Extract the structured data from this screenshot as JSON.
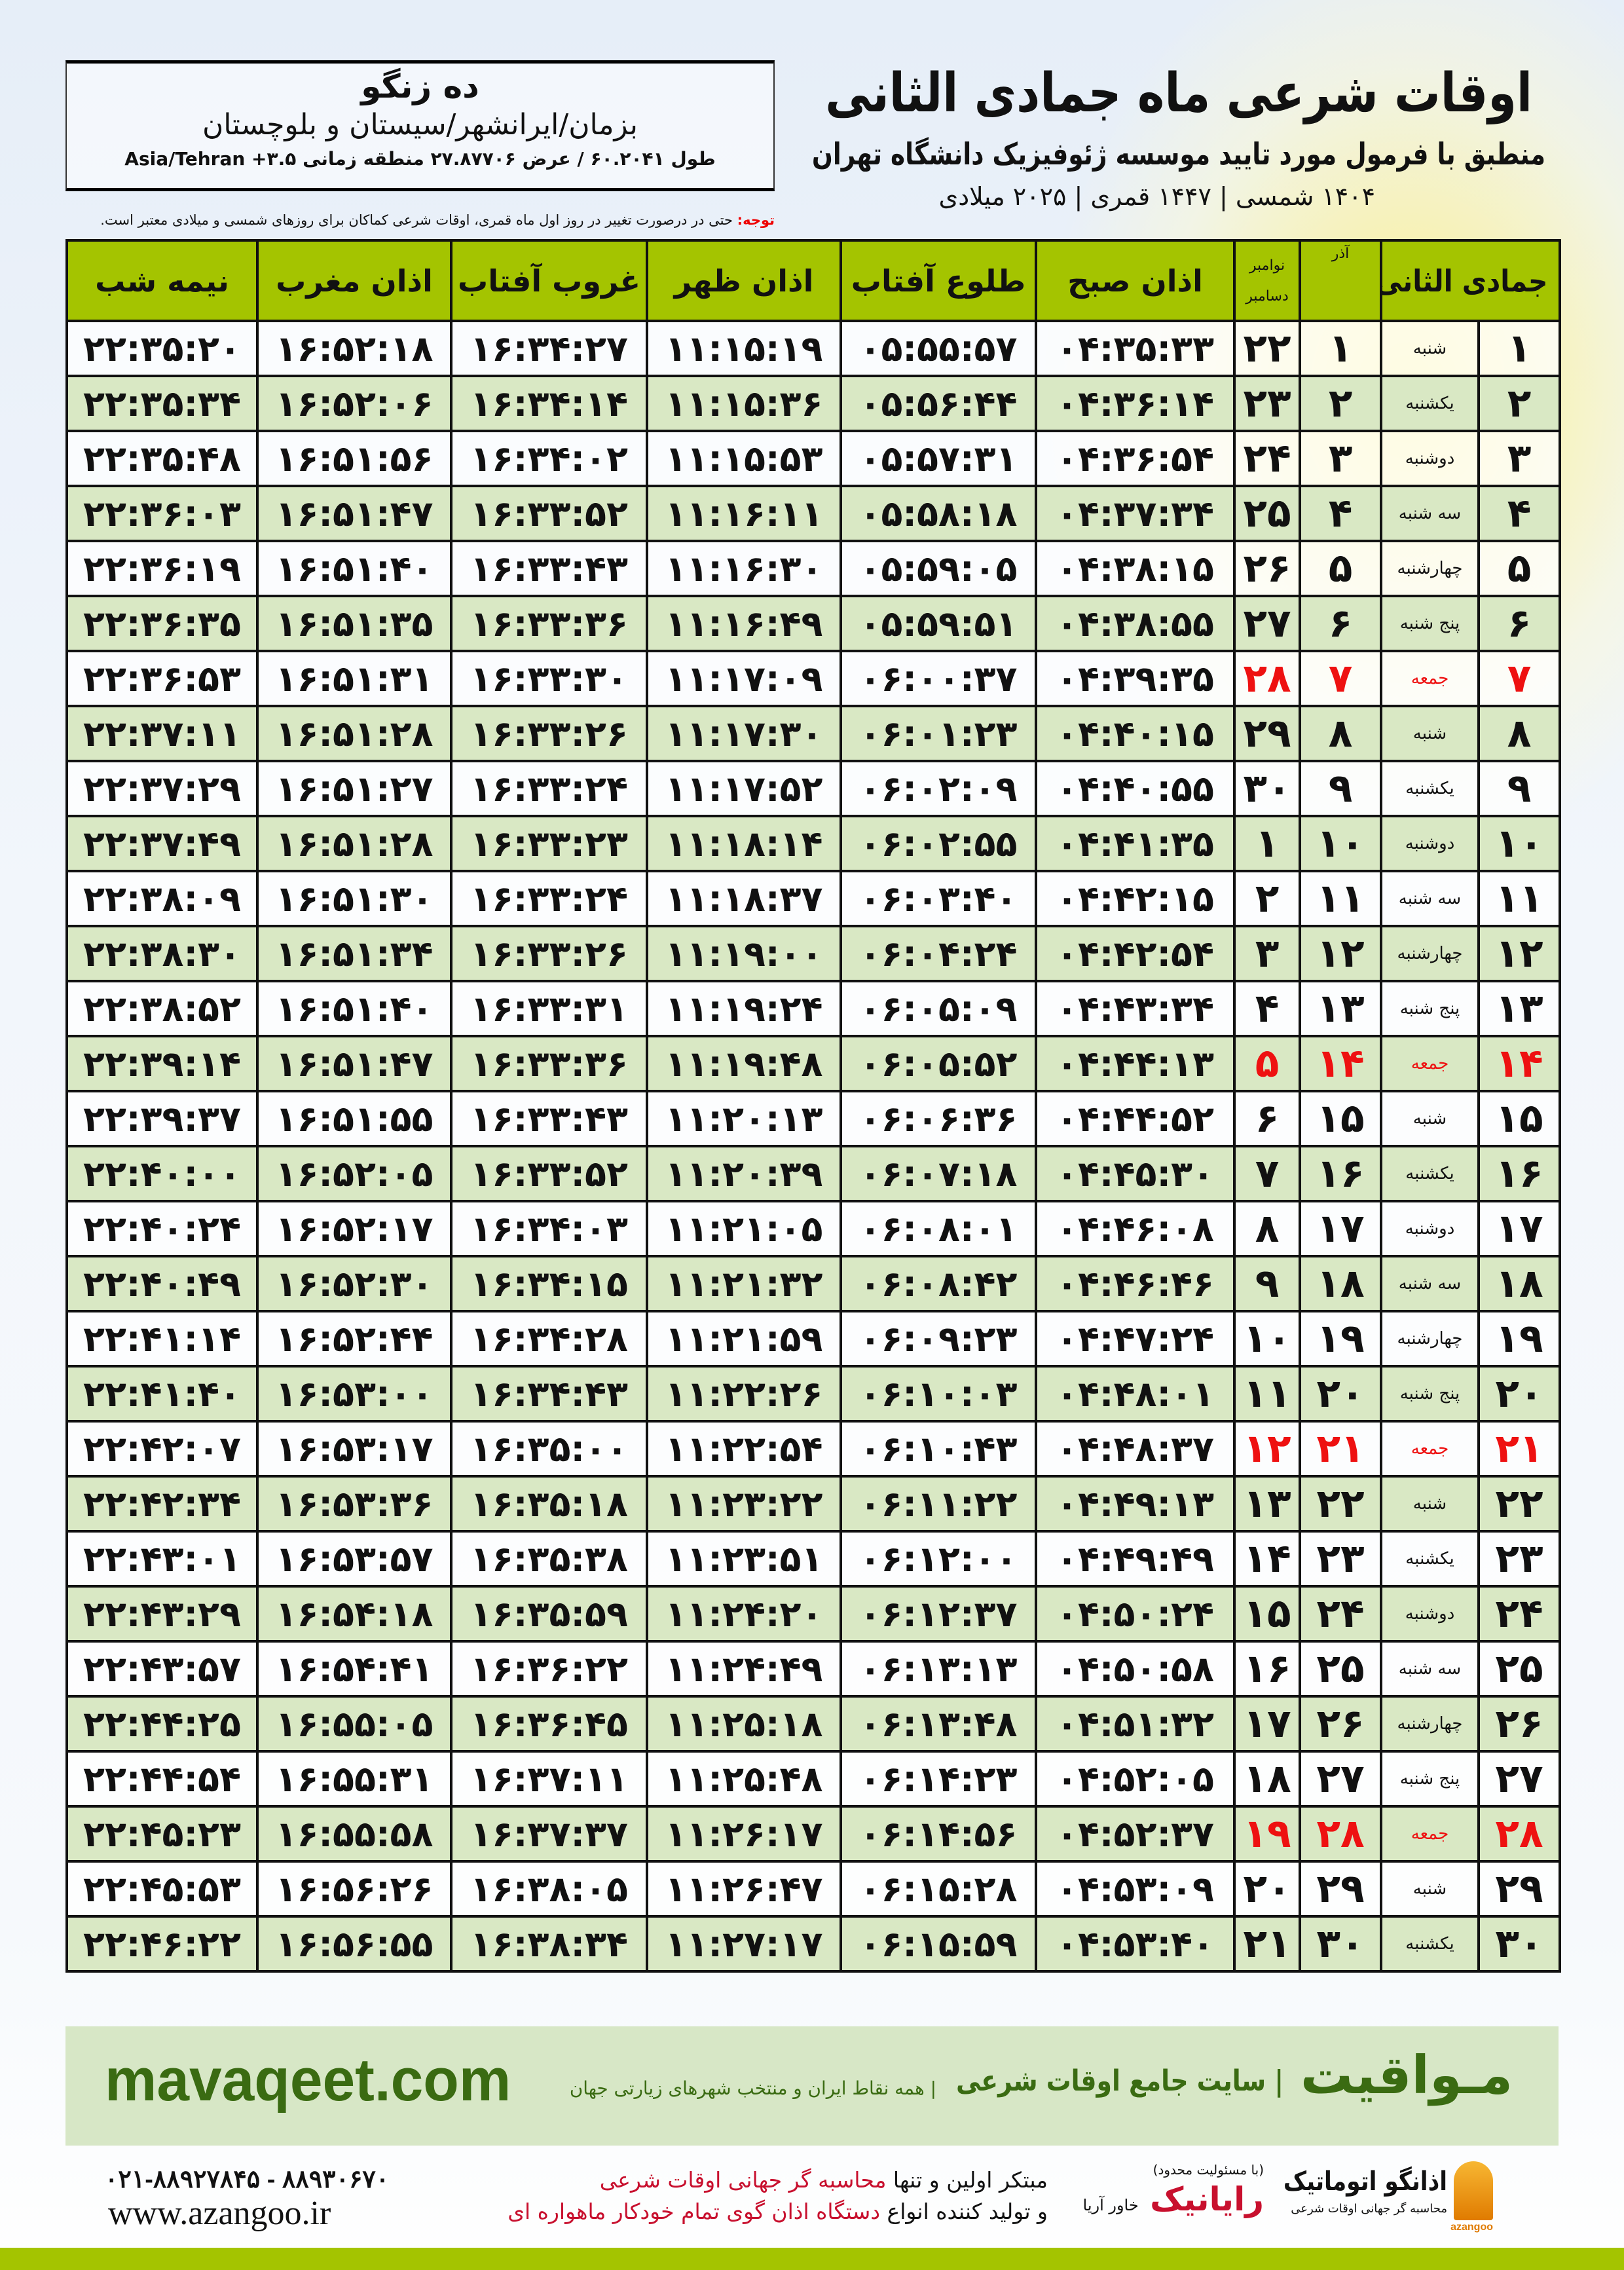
{
  "header": {
    "title": "اوقات شرعی ماه جمادی الثانی",
    "subtitle": "منطبق با فرمول مورد تایید موسسه ژئوفیزیک دانشگاه تهران",
    "years": "۱۴۰۴ شمسی | ۱۴۴۷ قمری | ۲۰۲۵ میلادی"
  },
  "location": {
    "city": "ده زنگو",
    "province": "بزمان/ایرانشهر/سیستان و بلوچستان",
    "coords": "طول ۶۰.۲۰۴۱ / عرض ۲۷.۸۷۷۰۶ منطقه زمانی ۳.۵+ Asia/Tehran"
  },
  "note": {
    "label": "توجه:",
    "text": " حتی در درصورت تغییر در روز اول ماه قمری، اوقات شرعی کماکان برای روزهای شمسی و میلادی معتبر است."
  },
  "table": {
    "headers": {
      "hijri": "جمادی الثانی",
      "azar": "آذر",
      "greg_top": "نوامبر",
      "greg_bottom": "دسامبر",
      "sobh": "اذان صبح",
      "tolu": "طلوع آفتاب",
      "zohr": "اذان ظهر",
      "ghorub": "غروب آفتاب",
      "maghreb": "اذان مغرب",
      "nimeshab": "نیمه شب"
    },
    "highlight_color": "#ee1111",
    "header_color": "#a4c400",
    "alt_row_color": "#d9e8c4",
    "rows": [
      [
        "۱",
        "شنبه",
        "۱",
        "۲۲",
        "۰۴:۳۵:۳۳",
        "۰۵:۵۵:۵۷",
        "۱۱:۱۵:۱۹",
        "۱۶:۳۴:۲۷",
        "۱۶:۵۲:۱۸",
        "۲۲:۳۵:۲۰"
      ],
      [
        "۲",
        "یکشنبه",
        "۲",
        "۲۳",
        "۰۴:۳۶:۱۴",
        "۰۵:۵۶:۴۴",
        "۱۱:۱۵:۳۶",
        "۱۶:۳۴:۱۴",
        "۱۶:۵۲:۰۶",
        "۲۲:۳۵:۳۴"
      ],
      [
        "۳",
        "دوشنبه",
        "۳",
        "۲۴",
        "۰۴:۳۶:۵۴",
        "۰۵:۵۷:۳۱",
        "۱۱:۱۵:۵۳",
        "۱۶:۳۴:۰۲",
        "۱۶:۵۱:۵۶",
        "۲۲:۳۵:۴۸"
      ],
      [
        "۴",
        "سه شنبه",
        "۴",
        "۲۵",
        "۰۴:۳۷:۳۴",
        "۰۵:۵۸:۱۸",
        "۱۱:۱۶:۱۱",
        "۱۶:۳۳:۵۲",
        "۱۶:۵۱:۴۷",
        "۲۲:۳۶:۰۳"
      ],
      [
        "۵",
        "چهارشنبه",
        "۵",
        "۲۶",
        "۰۴:۳۸:۱۵",
        "۰۵:۵۹:۰۵",
        "۱۱:۱۶:۳۰",
        "۱۶:۳۳:۴۳",
        "۱۶:۵۱:۴۰",
        "۲۲:۳۶:۱۹"
      ],
      [
        "۶",
        "پنج شنبه",
        "۶",
        "۲۷",
        "۰۴:۳۸:۵۵",
        "۰۵:۵۹:۵۱",
        "۱۱:۱۶:۴۹",
        "۱۶:۳۳:۳۶",
        "۱۶:۵۱:۳۵",
        "۲۲:۳۶:۳۵"
      ],
      [
        "۷",
        "جمعه",
        "۷",
        "۲۸",
        "۰۴:۳۹:۳۵",
        "۰۶:۰۰:۳۷",
        "۱۱:۱۷:۰۹",
        "۱۶:۳۳:۳۰",
        "۱۶:۵۱:۳۱",
        "۲۲:۳۶:۵۳"
      ],
      [
        "۸",
        "شنبه",
        "۸",
        "۲۹",
        "۰۴:۴۰:۱۵",
        "۰۶:۰۱:۲۳",
        "۱۱:۱۷:۳۰",
        "۱۶:۳۳:۲۶",
        "۱۶:۵۱:۲۸",
        "۲۲:۳۷:۱۱"
      ],
      [
        "۹",
        "یکشنبه",
        "۹",
        "۳۰",
        "۰۴:۴۰:۵۵",
        "۰۶:۰۲:۰۹",
        "۱۱:۱۷:۵۲",
        "۱۶:۳۳:۲۴",
        "۱۶:۵۱:۲۷",
        "۲۲:۳۷:۲۹"
      ],
      [
        "۱۰",
        "دوشنبه",
        "۱۰",
        "۱",
        "۰۴:۴۱:۳۵",
        "۰۶:۰۲:۵۵",
        "۱۱:۱۸:۱۴",
        "۱۶:۳۳:۲۳",
        "۱۶:۵۱:۲۸",
        "۲۲:۳۷:۴۹"
      ],
      [
        "۱۱",
        "سه شنبه",
        "۱۱",
        "۲",
        "۰۴:۴۲:۱۵",
        "۰۶:۰۳:۴۰",
        "۱۱:۱۸:۳۷",
        "۱۶:۳۳:۲۴",
        "۱۶:۵۱:۳۰",
        "۲۲:۳۸:۰۹"
      ],
      [
        "۱۲",
        "چهارشنبه",
        "۱۲",
        "۳",
        "۰۴:۴۲:۵۴",
        "۰۶:۰۴:۲۴",
        "۱۱:۱۹:۰۰",
        "۱۶:۳۳:۲۶",
        "۱۶:۵۱:۳۴",
        "۲۲:۳۸:۳۰"
      ],
      [
        "۱۳",
        "پنج شنبه",
        "۱۳",
        "۴",
        "۰۴:۴۳:۳۴",
        "۰۶:۰۵:۰۹",
        "۱۱:۱۹:۲۴",
        "۱۶:۳۳:۳۱",
        "۱۶:۵۱:۴۰",
        "۲۲:۳۸:۵۲"
      ],
      [
        "۱۴",
        "جمعه",
        "۱۴",
        "۵",
        "۰۴:۴۴:۱۳",
        "۰۶:۰۵:۵۲",
        "۱۱:۱۹:۴۸",
        "۱۶:۳۳:۳۶",
        "۱۶:۵۱:۴۷",
        "۲۲:۳۹:۱۴"
      ],
      [
        "۱۵",
        "شنبه",
        "۱۵",
        "۶",
        "۰۴:۴۴:۵۲",
        "۰۶:۰۶:۳۶",
        "۱۱:۲۰:۱۳",
        "۱۶:۳۳:۴۳",
        "۱۶:۵۱:۵۵",
        "۲۲:۳۹:۳۷"
      ],
      [
        "۱۶",
        "یکشنبه",
        "۱۶",
        "۷",
        "۰۴:۴۵:۳۰",
        "۰۶:۰۷:۱۸",
        "۱۱:۲۰:۳۹",
        "۱۶:۳۳:۵۲",
        "۱۶:۵۲:۰۵",
        "۲۲:۴۰:۰۰"
      ],
      [
        "۱۷",
        "دوشنبه",
        "۱۷",
        "۸",
        "۰۴:۴۶:۰۸",
        "۰۶:۰۸:۰۱",
        "۱۱:۲۱:۰۵",
        "۱۶:۳۴:۰۳",
        "۱۶:۵۲:۱۷",
        "۲۲:۴۰:۲۴"
      ],
      [
        "۱۸",
        "سه شنبه",
        "۱۸",
        "۹",
        "۰۴:۴۶:۴۶",
        "۰۶:۰۸:۴۲",
        "۱۱:۲۱:۳۲",
        "۱۶:۳۴:۱۵",
        "۱۶:۵۲:۳۰",
        "۲۲:۴۰:۴۹"
      ],
      [
        "۱۹",
        "چهارشنبه",
        "۱۹",
        "۱۰",
        "۰۴:۴۷:۲۴",
        "۰۶:۰۹:۲۳",
        "۱۱:۲۱:۵۹",
        "۱۶:۳۴:۲۸",
        "۱۶:۵۲:۴۴",
        "۲۲:۴۱:۱۴"
      ],
      [
        "۲۰",
        "پنج شنبه",
        "۲۰",
        "۱۱",
        "۰۴:۴۸:۰۱",
        "۰۶:۱۰:۰۳",
        "۱۱:۲۲:۲۶",
        "۱۶:۳۴:۴۳",
        "۱۶:۵۳:۰۰",
        "۲۲:۴۱:۴۰"
      ],
      [
        "۲۱",
        "جمعه",
        "۲۱",
        "۱۲",
        "۰۴:۴۸:۳۷",
        "۰۶:۱۰:۴۳",
        "۱۱:۲۲:۵۴",
        "۱۶:۳۵:۰۰",
        "۱۶:۵۳:۱۷",
        "۲۲:۴۲:۰۷"
      ],
      [
        "۲۲",
        "شنبه",
        "۲۲",
        "۱۳",
        "۰۴:۴۹:۱۳",
        "۰۶:۱۱:۲۲",
        "۱۱:۲۳:۲۲",
        "۱۶:۳۵:۱۸",
        "۱۶:۵۳:۳۶",
        "۲۲:۴۲:۳۴"
      ],
      [
        "۲۳",
        "یکشنبه",
        "۲۳",
        "۱۴",
        "۰۴:۴۹:۴۹",
        "۰۶:۱۲:۰۰",
        "۱۱:۲۳:۵۱",
        "۱۶:۳۵:۳۸",
        "۱۶:۵۳:۵۷",
        "۲۲:۴۳:۰۱"
      ],
      [
        "۲۴",
        "دوشنبه",
        "۲۴",
        "۱۵",
        "۰۴:۵۰:۲۴",
        "۰۶:۱۲:۳۷",
        "۱۱:۲۴:۲۰",
        "۱۶:۳۵:۵۹",
        "۱۶:۵۴:۱۸",
        "۲۲:۴۳:۲۹"
      ],
      [
        "۲۵",
        "سه شنبه",
        "۲۵",
        "۱۶",
        "۰۴:۵۰:۵۸",
        "۰۶:۱۳:۱۳",
        "۱۱:۲۴:۴۹",
        "۱۶:۳۶:۲۲",
        "۱۶:۵۴:۴۱",
        "۲۲:۴۳:۵۷"
      ],
      [
        "۲۶",
        "چهارشنبه",
        "۲۶",
        "۱۷",
        "۰۴:۵۱:۳۲",
        "۰۶:۱۳:۴۸",
        "۱۱:۲۵:۱۸",
        "۱۶:۳۶:۴۵",
        "۱۶:۵۵:۰۵",
        "۲۲:۴۴:۲۵"
      ],
      [
        "۲۷",
        "پنج شنبه",
        "۲۷",
        "۱۸",
        "۰۴:۵۲:۰۵",
        "۰۶:۱۴:۲۳",
        "۱۱:۲۵:۴۸",
        "۱۶:۳۷:۱۱",
        "۱۶:۵۵:۳۱",
        "۲۲:۴۴:۵۴"
      ],
      [
        "۲۸",
        "جمعه",
        "۲۸",
        "۱۹",
        "۰۴:۵۲:۳۷",
        "۰۶:۱۴:۵۶",
        "۱۱:۲۶:۱۷",
        "۱۶:۳۷:۳۷",
        "۱۶:۵۵:۵۸",
        "۲۲:۴۵:۲۳"
      ],
      [
        "۲۹",
        "شنبه",
        "۲۹",
        "۲۰",
        "۰۴:۵۳:۰۹",
        "۰۶:۱۵:۲۸",
        "۱۱:۲۶:۴۷",
        "۱۶:۳۸:۰۵",
        "۱۶:۵۶:۲۶",
        "۲۲:۴۵:۵۳"
      ],
      [
        "۳۰",
        "یکشنبه",
        "۳۰",
        "۲۱",
        "۰۴:۵۳:۴۰",
        "۰۶:۱۵:۵۹",
        "۱۱:۲۷:۱۷",
        "۱۶:۳۸:۳۴",
        "۱۶:۵۶:۵۵",
        "۲۲:۴۶:۲۲"
      ]
    ]
  },
  "banner": {
    "brand": "مـواقیت",
    "tagline": "| سایت جامع اوقات شرعی",
    "tagline_sub": "| همه نقاط ایران و منتخب شهرهای زیارتی جهان",
    "site": "mavaqeet.com",
    "brand_color": "#3a6b12"
  },
  "footer": {
    "phone": "۰۲۱-۸۸۹۲۷۸۴۵ - ۸۸۹۳۰۶۷۰",
    "web": "www.azangoo.ir",
    "promo_line1_a": "مبتکر اولین و تنها ",
    "promo_line1_b": "محاسبه گر جهانی اوقات شرعی",
    "promo_line2_a": "و تولید کننده انواع ",
    "promo_line2_b": "دستگاه اذان گوی تمام خودکار ماهواره ای",
    "rayanik_small": "(با مسئولیت محدود)",
    "rayanik": "رایانیک",
    "rayanik_sub": "خاور آریا",
    "azangoo": "اذانگو اتوماتیک",
    "azangoo_sub": "محاسبه گر جهانی اوقات شرعی",
    "azangoo_en": "azangoo"
  }
}
